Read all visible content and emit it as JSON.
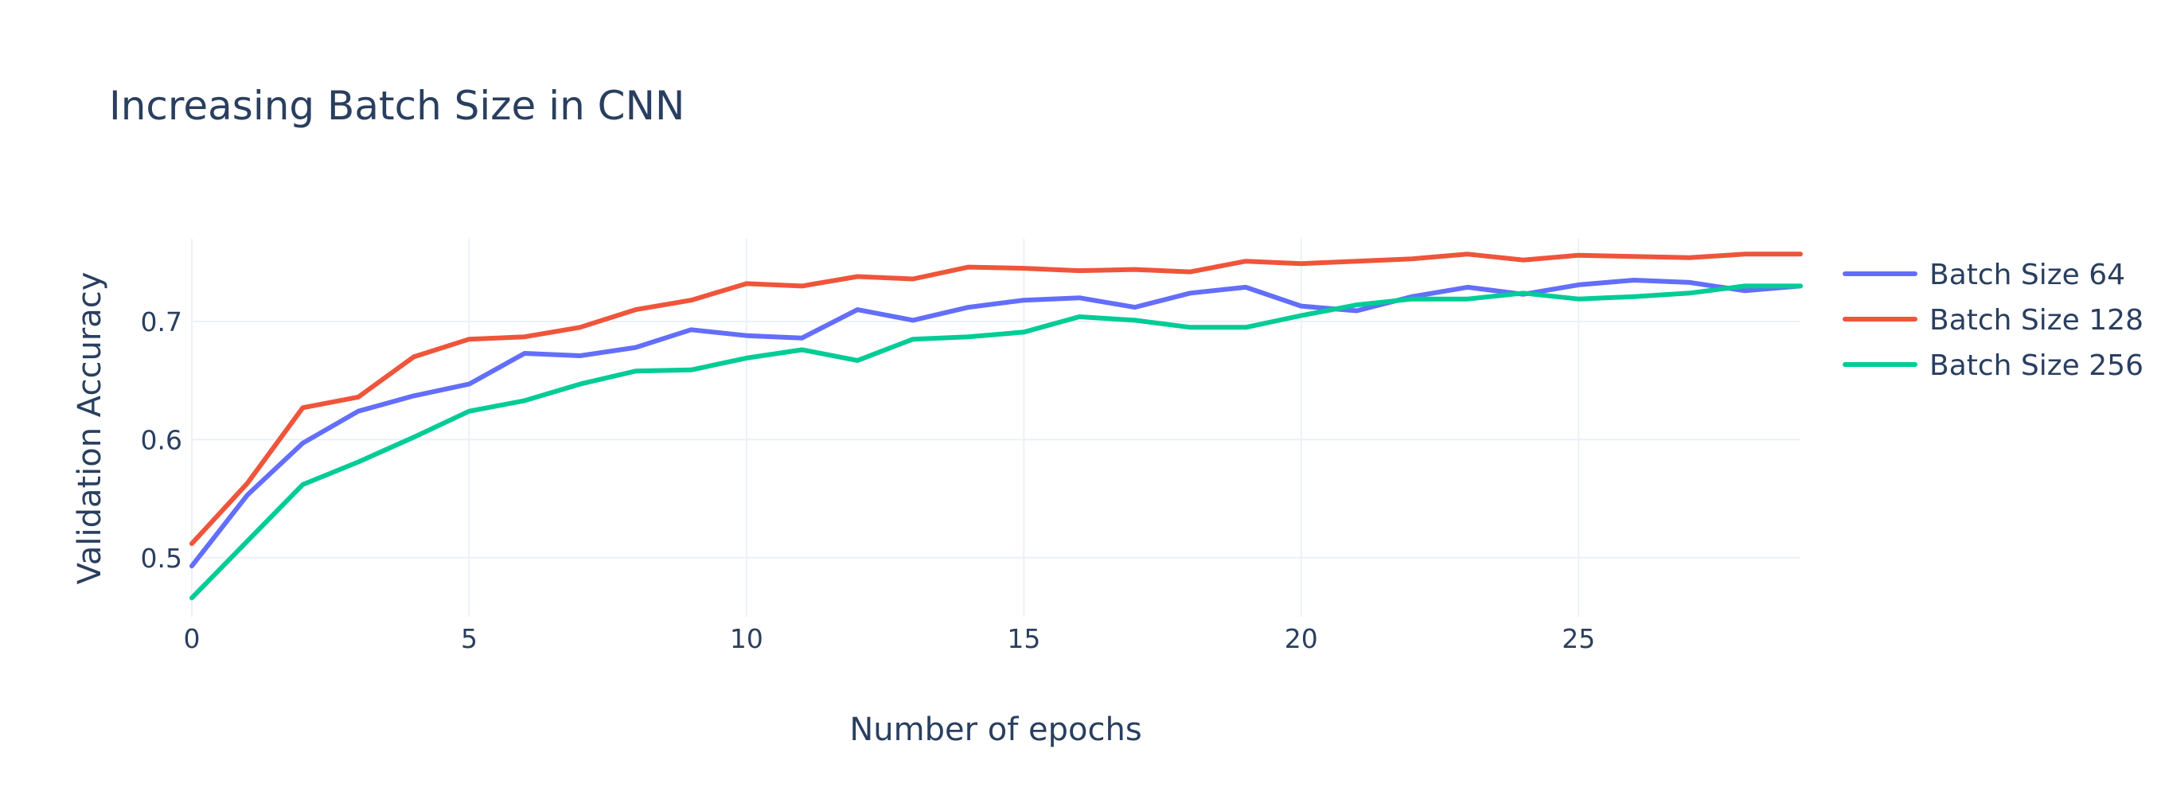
{
  "chart_data": {
    "type": "line",
    "title": "Increasing Batch Size in CNN",
    "xlabel": "Number of epochs",
    "ylabel": "Validation Accuracy",
    "xlim": [
      0,
      29
    ],
    "ylim": [
      0.45,
      0.77
    ],
    "xticks": [
      0,
      5,
      10,
      15,
      20,
      25
    ],
    "yticks": [
      0.5,
      0.6,
      0.7
    ],
    "grid": true,
    "legend_position": "right",
    "x": [
      0,
      1,
      2,
      3,
      4,
      5,
      6,
      7,
      8,
      9,
      10,
      11,
      12,
      13,
      14,
      15,
      16,
      17,
      18,
      19,
      20,
      21,
      22,
      23,
      24,
      25,
      26,
      27,
      28,
      29
    ],
    "series": [
      {
        "name": "Batch Size 64",
        "color": "#636efa",
        "values": [
          0.493,
          0.553,
          0.597,
          0.624,
          0.637,
          0.647,
          0.673,
          0.671,
          0.678,
          0.693,
          0.688,
          0.686,
          0.71,
          0.701,
          0.712,
          0.718,
          0.72,
          0.712,
          0.724,
          0.729,
          0.713,
          0.709,
          0.721,
          0.729,
          0.723,
          0.731,
          0.735,
          0.733,
          0.726,
          0.73
        ]
      },
      {
        "name": "Batch Size 128",
        "color": "#ef553b",
        "values": [
          0.512,
          0.563,
          0.627,
          0.636,
          0.67,
          0.685,
          0.687,
          0.695,
          0.71,
          0.718,
          0.732,
          0.73,
          0.738,
          0.736,
          0.746,
          0.745,
          0.743,
          0.744,
          0.742,
          0.751,
          0.749,
          0.751,
          0.753,
          0.757,
          0.752,
          0.756,
          0.755,
          0.754,
          0.757,
          0.757
        ]
      },
      {
        "name": "Batch Size 256",
        "color": "#00cc96",
        "values": [
          0.466,
          0.514,
          0.562,
          0.581,
          0.602,
          0.624,
          0.633,
          0.647,
          0.658,
          0.659,
          0.669,
          0.676,
          0.667,
          0.685,
          0.687,
          0.691,
          0.704,
          0.701,
          0.695,
          0.695,
          0.705,
          0.714,
          0.719,
          0.719,
          0.724,
          0.719,
          0.721,
          0.724,
          0.73,
          0.73
        ]
      }
    ]
  }
}
